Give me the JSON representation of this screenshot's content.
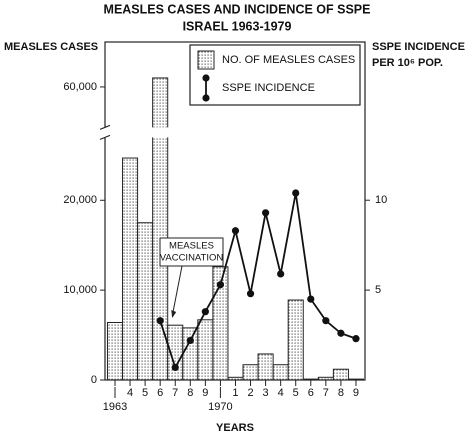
{
  "chart_data": {
    "type": "bar-line",
    "title": "MEASLES CASES AND INCIDENCE OF SSPE",
    "subtitle": "ISRAEL 1963-1979",
    "ylabel": "MEASLES CASES",
    "y2label": [
      "SSPE INCIDENCE",
      "PER 10⁶ POP."
    ],
    "xlabel": "YEARS",
    "categories": [
      "1963",
      "4",
      "5",
      "6",
      "7",
      "8",
      "9",
      "1970",
      "1",
      "2",
      "3",
      "4",
      "5",
      "6",
      "7",
      "8",
      "9"
    ],
    "series": [
      {
        "name": "NO. OF MEASLES CASES",
        "type": "bar",
        "color": "#555555",
        "values": [
          6400,
          24700,
          17500,
          61000,
          6100,
          5800,
          6700,
          12600,
          300,
          1700,
          2900,
          1700,
          8900,
          100,
          300,
          1200,
          100
        ]
      },
      {
        "name": "SSPE INCIDENCE",
        "type": "line",
        "axis": "y2",
        "color": "#111111",
        "values": [
          null,
          null,
          null,
          3.3,
          0.7,
          2.2,
          3.8,
          5.3,
          8.3,
          4.8,
          9.3,
          5.9,
          10.4,
          4.5,
          3.3,
          2.6,
          2.3
        ]
      }
    ],
    "ylim": [
      0,
      65000
    ],
    "ybreak": [
      27000,
      55500
    ],
    "yticks": [
      0,
      {
        "value": 10000,
        "label": "10,000"
      },
      {
        "value": 20000,
        "label": "20,000"
      },
      {
        "value": 60000,
        "label": "60,000"
      }
    ],
    "y2lim": [
      0,
      18.8
    ],
    "y2ticks": [
      5,
      10
    ],
    "annotation": [
      "MEASLES",
      "VACCINATION"
    ],
    "legend": "upper right"
  }
}
